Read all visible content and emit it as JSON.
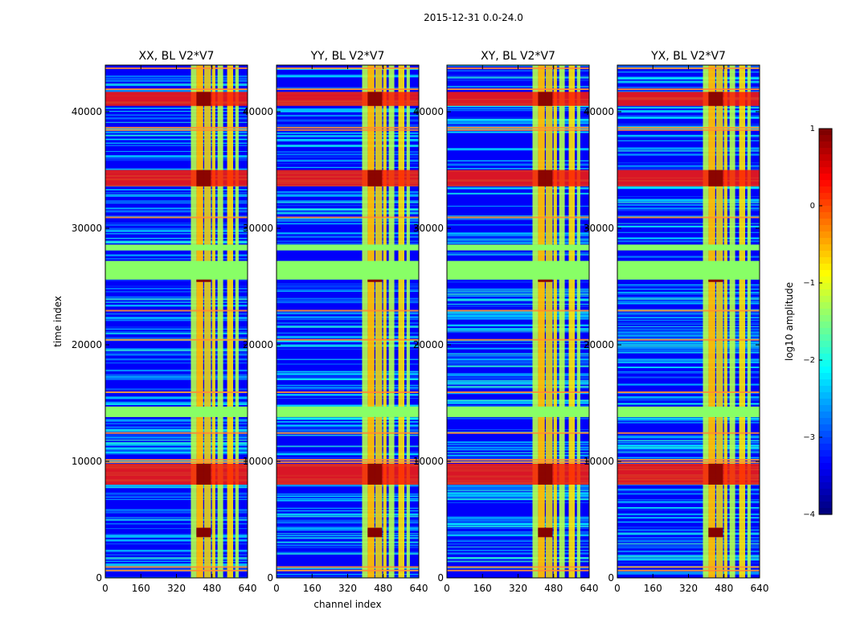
{
  "figure": {
    "suptitle": "2015-12-31 0.0-24.0"
  },
  "chart_data": [
    {
      "type": "heatmap",
      "title": "XX, BL V2*V7",
      "xlabel": "",
      "ylabel": "time index",
      "xlim": [
        0,
        640
      ],
      "ylim": [
        0,
        44000
      ],
      "xticks": [
        0,
        160,
        320,
        480,
        640
      ],
      "yticks": [
        0,
        10000,
        20000,
        30000,
        40000
      ]
    },
    {
      "type": "heatmap",
      "title": "YY, BL V2*V7",
      "xlabel": "channel index",
      "ylabel": "",
      "xlim": [
        0,
        640
      ],
      "ylim": [
        0,
        44000
      ],
      "xticks": [
        0,
        160,
        320,
        480,
        640
      ],
      "yticks": [
        0,
        10000,
        20000,
        30000,
        40000
      ]
    },
    {
      "type": "heatmap",
      "title": "XY, BL V2*V7",
      "xlabel": "",
      "ylabel": "",
      "xlim": [
        0,
        640
      ],
      "ylim": [
        0,
        44000
      ],
      "xticks": [
        0,
        160,
        320,
        480,
        640
      ],
      "yticks": [
        0,
        10000,
        20000,
        30000,
        40000
      ]
    },
    {
      "type": "heatmap",
      "title": "YX, BL V2*V7",
      "xlabel": "",
      "ylabel": "",
      "xlim": [
        0,
        640
      ],
      "ylim": [
        0,
        44000
      ],
      "xticks": [
        0,
        160,
        320,
        480,
        640
      ],
      "yticks": [
        0,
        10000,
        20000,
        30000,
        40000
      ]
    }
  ],
  "colorbar": {
    "label": "log10 amplitude",
    "range": [
      -4,
      1
    ],
    "ticks": [
      1,
      0,
      -1,
      -2,
      -3,
      -4
    ],
    "tick_labels": [
      "1",
      "0",
      "−1",
      "−2",
      "−3",
      "−4"
    ],
    "colormap": "jet"
  },
  "features": {
    "flagged_time_bands": [
      [
        25600,
        27200
      ],
      [
        28100,
        28600
      ],
      [
        13800,
        14700
      ]
    ],
    "bright_channel_columns": [
      [
        385,
        410
      ],
      [
        410,
        440
      ],
      [
        445,
        475
      ],
      [
        480,
        495
      ],
      [
        505,
        530
      ],
      [
        548,
        575
      ],
      [
        585,
        600
      ]
    ],
    "rfi_channel_columns": [
      [
        410,
        440
      ],
      [
        445,
        475
      ]
    ],
    "bright_time_bands": [
      [
        33600,
        35000
      ],
      [
        8000,
        9800
      ],
      [
        3500,
        4300
      ],
      [
        25400,
        25900
      ],
      [
        40500,
        41700
      ]
    ],
    "hot_lines": [
      38500,
      38700,
      31000,
      10200,
      10000,
      700,
      1000,
      23000,
      20500,
      12500,
      16000,
      42000,
      43800
    ]
  },
  "colors": {
    "background_low": "#0a1ee6",
    "flag_band": "#88ff66",
    "hot_line": "#ff8c32",
    "saturated": "#7f0000"
  }
}
